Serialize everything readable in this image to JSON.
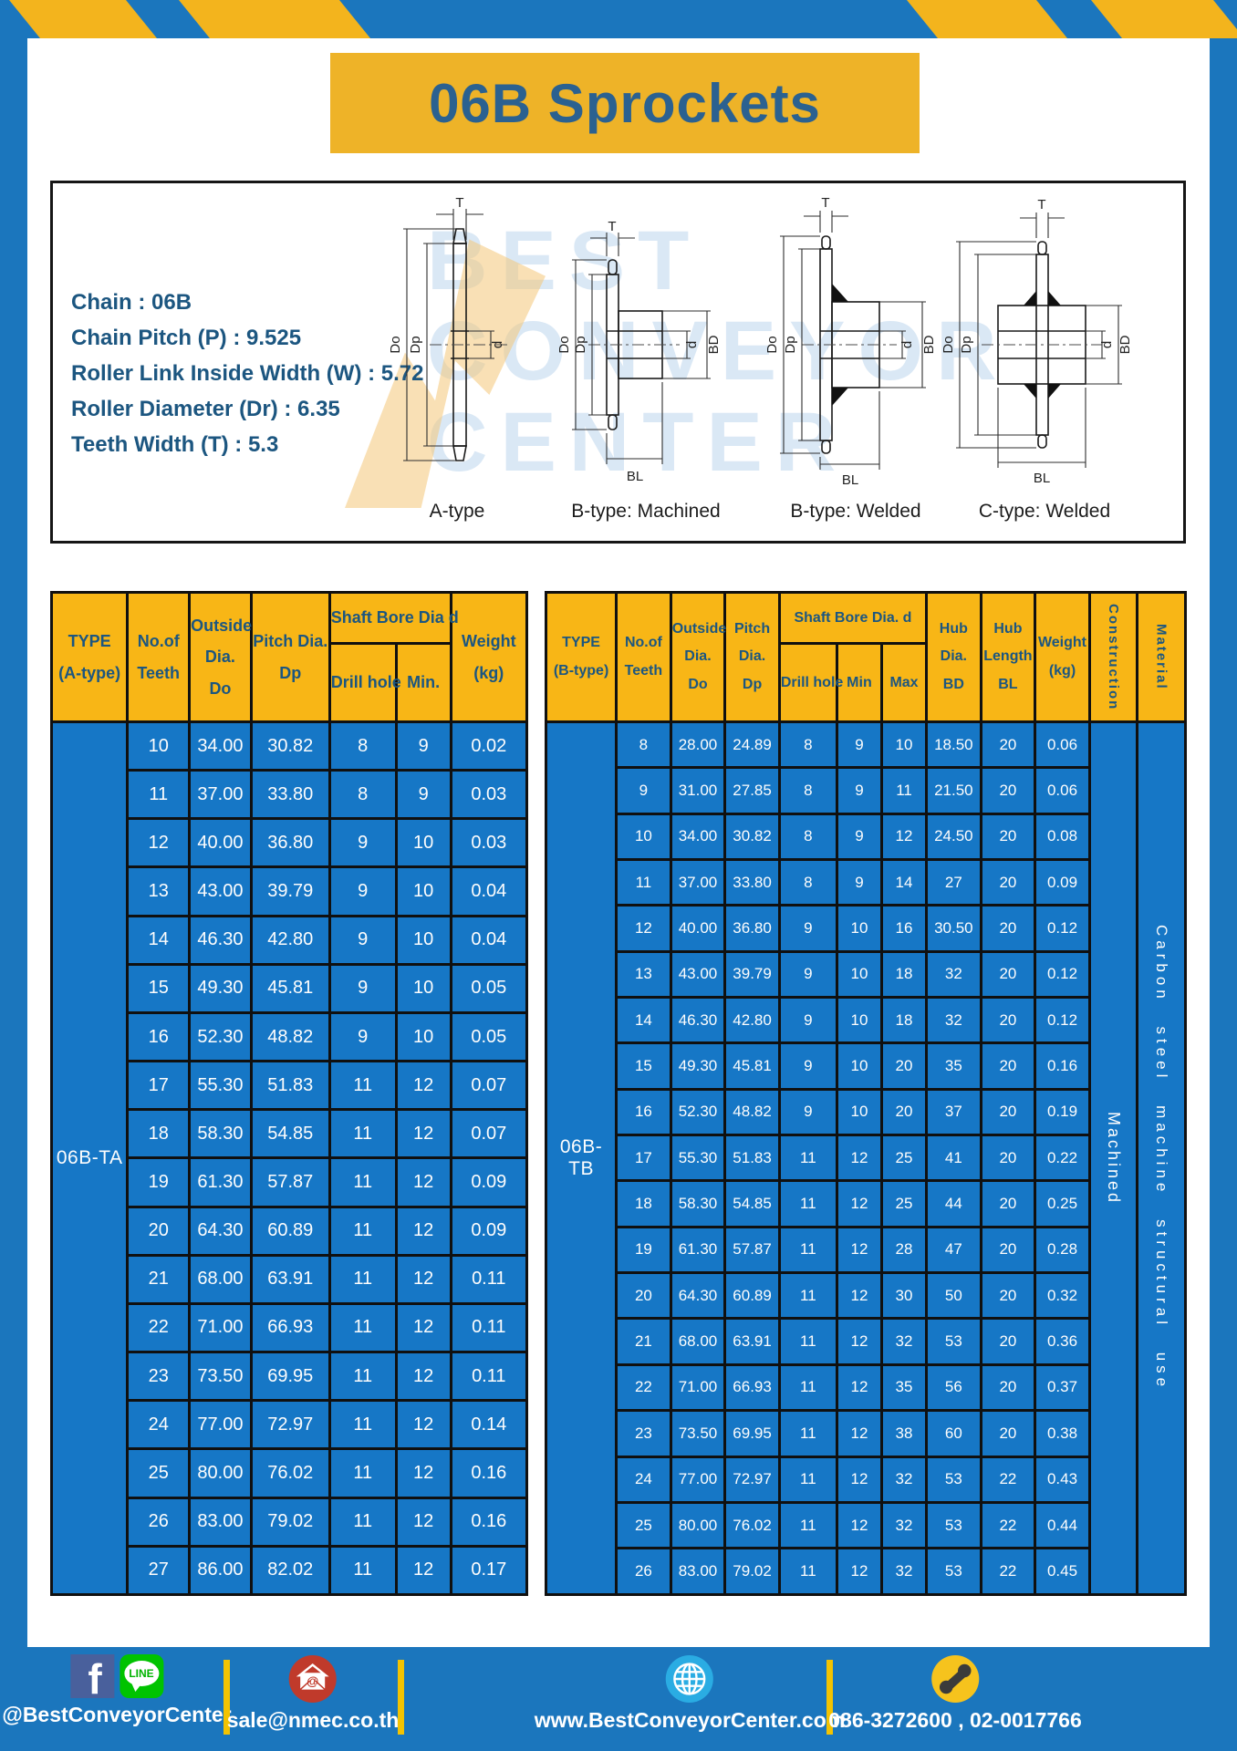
{
  "title": "06B Sprockets",
  "specs": {
    "lines": [
      "Chain : 06B",
      "Chain Pitch (P) : 9.525",
      "Roller Link Inside Width (W) : 5.72",
      "Roller Diameter (Dr) : 6.35",
      "Teeth Width (T) : 5.3"
    ]
  },
  "diagrams": {
    "captions": [
      "A-type",
      "B-type: Machined",
      "B-type: Welded",
      "C-type: Welded"
    ],
    "dim_labels": {
      "t": "T",
      "do": "Do",
      "dp": "Dp",
      "d": "d",
      "bd": "BD",
      "bl": "BL"
    },
    "watermark": [
      "BEST",
      "CONVEYOR",
      "CENTER"
    ]
  },
  "table_a": {
    "header": {
      "type": [
        "TYPE",
        "(A-type)"
      ],
      "teeth": [
        "No.of",
        "Teeth"
      ],
      "outside": [
        "Outside",
        "Dia.",
        "Do"
      ],
      "pitch": [
        "Pitch Dia.",
        "Dp"
      ],
      "bore_group": "Shaft Bore Dia d",
      "drill": "Drill hole",
      "min": "Min.",
      "weight": [
        "Weight",
        "(kg)"
      ]
    },
    "type_label": "06B-TA",
    "rows": [
      [
        "10",
        "34.00",
        "30.82",
        "8",
        "9",
        "0.02"
      ],
      [
        "11",
        "37.00",
        "33.80",
        "8",
        "9",
        "0.03"
      ],
      [
        "12",
        "40.00",
        "36.80",
        "9",
        "10",
        "0.03"
      ],
      [
        "13",
        "43.00",
        "39.79",
        "9",
        "10",
        "0.04"
      ],
      [
        "14",
        "46.30",
        "42.80",
        "9",
        "10",
        "0.04"
      ],
      [
        "15",
        "49.30",
        "45.81",
        "9",
        "10",
        "0.05"
      ],
      [
        "16",
        "52.30",
        "48.82",
        "9",
        "10",
        "0.05"
      ],
      [
        "17",
        "55.30",
        "51.83",
        "11",
        "12",
        "0.07"
      ],
      [
        "18",
        "58.30",
        "54.85",
        "11",
        "12",
        "0.07"
      ],
      [
        "19",
        "61.30",
        "57.87",
        "11",
        "12",
        "0.09"
      ],
      [
        "20",
        "64.30",
        "60.89",
        "11",
        "12",
        "0.09"
      ],
      [
        "21",
        "68.00",
        "63.91",
        "11",
        "12",
        "0.11"
      ],
      [
        "22",
        "71.00",
        "66.93",
        "11",
        "12",
        "0.11"
      ],
      [
        "23",
        "73.50",
        "69.95",
        "11",
        "12",
        "0.11"
      ],
      [
        "24",
        "77.00",
        "72.97",
        "11",
        "12",
        "0.14"
      ],
      [
        "25",
        "80.00",
        "76.02",
        "11",
        "12",
        "0.16"
      ],
      [
        "26",
        "83.00",
        "79.02",
        "11",
        "12",
        "0.16"
      ],
      [
        "27",
        "86.00",
        "82.02",
        "11",
        "12",
        "0.17"
      ]
    ]
  },
  "table_b": {
    "header": {
      "type": [
        "TYPE",
        "(B-type)"
      ],
      "teeth": [
        "No.of",
        "Teeth"
      ],
      "outside": [
        "Outside",
        "Dia.",
        "Do"
      ],
      "pitch": [
        "Pitch",
        "Dia.",
        "Dp"
      ],
      "bore_group": "Shaft Bore Dia.  d",
      "drill": "Drill hole",
      "min": "Min",
      "max": "Max",
      "hub_dia": [
        "Hub",
        "Dia.",
        "BD"
      ],
      "hub_len": [
        "Hub",
        "Length",
        "BL"
      ],
      "weight": [
        "Weight",
        "(kg)"
      ],
      "construction": "Construction",
      "material": "Material"
    },
    "type_label": "06B-TB",
    "construction_value": "Machined",
    "material_value": "Carbon steel machine structural use",
    "rows": [
      [
        "8",
        "28.00",
        "24.89",
        "8",
        "9",
        "10",
        "18.50",
        "20",
        "0.06"
      ],
      [
        "9",
        "31.00",
        "27.85",
        "8",
        "9",
        "11",
        "21.50",
        "20",
        "0.06"
      ],
      [
        "10",
        "34.00",
        "30.82",
        "8",
        "9",
        "12",
        "24.50",
        "20",
        "0.08"
      ],
      [
        "11",
        "37.00",
        "33.80",
        "8",
        "9",
        "14",
        "27",
        "20",
        "0.09"
      ],
      [
        "12",
        "40.00",
        "36.80",
        "9",
        "10",
        "16",
        "30.50",
        "20",
        "0.12"
      ],
      [
        "13",
        "43.00",
        "39.79",
        "9",
        "10",
        "18",
        "32",
        "20",
        "0.12"
      ],
      [
        "14",
        "46.30",
        "42.80",
        "9",
        "10",
        "18",
        "32",
        "20",
        "0.12"
      ],
      [
        "15",
        "49.30",
        "45.81",
        "9",
        "10",
        "20",
        "35",
        "20",
        "0.16"
      ],
      [
        "16",
        "52.30",
        "48.82",
        "9",
        "10",
        "20",
        "37",
        "20",
        "0.19"
      ],
      [
        "17",
        "55.30",
        "51.83",
        "11",
        "12",
        "25",
        "41",
        "20",
        "0.22"
      ],
      [
        "18",
        "58.30",
        "54.85",
        "11",
        "12",
        "25",
        "44",
        "20",
        "0.25"
      ],
      [
        "19",
        "61.30",
        "57.87",
        "11",
        "12",
        "28",
        "47",
        "20",
        "0.28"
      ],
      [
        "20",
        "64.30",
        "60.89",
        "11",
        "12",
        "30",
        "50",
        "20",
        "0.32"
      ],
      [
        "21",
        "68.00",
        "63.91",
        "11",
        "12",
        "32",
        "53",
        "20",
        "0.36"
      ],
      [
        "22",
        "71.00",
        "66.93",
        "11",
        "12",
        "35",
        "56",
        "20",
        "0.37"
      ],
      [
        "23",
        "73.50",
        "69.95",
        "11",
        "12",
        "38",
        "60",
        "20",
        "0.38"
      ],
      [
        "24",
        "77.00",
        "72.97",
        "11",
        "12",
        "32",
        "53",
        "22",
        "0.43"
      ],
      [
        "25",
        "80.00",
        "76.02",
        "11",
        "12",
        "32",
        "53",
        "22",
        "0.44"
      ],
      [
        "26",
        "83.00",
        "79.02",
        "11",
        "12",
        "32",
        "53",
        "22",
        "0.45"
      ]
    ]
  },
  "footer": {
    "social_handle": "@BestConveyorCenter",
    "facebook_letter": "f",
    "line_label": "LINE",
    "mail_symbol": "@",
    "email": "sale@nmec.co.th",
    "website": "www.BestConveyorCenter.com",
    "phones": "086-3272600 , 02-0017766"
  },
  "colors": {
    "frame_blue": "#1b76bd",
    "cell_blue": "#1677c6",
    "header_yellow": "#f8b616",
    "title_yellow": "#eeb328",
    "navy_text": "#1c5680",
    "divider_yellow": "#f3c302"
  }
}
